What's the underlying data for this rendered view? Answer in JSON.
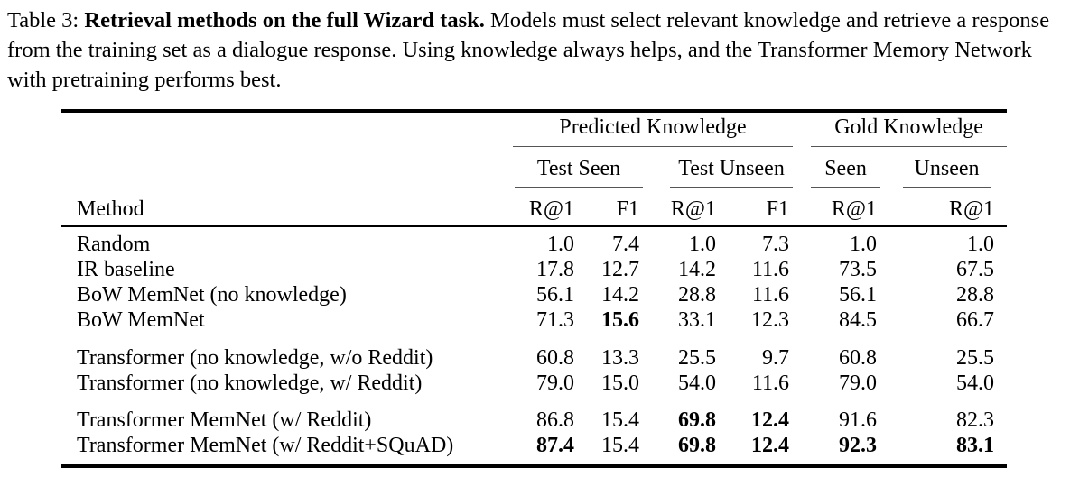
{
  "caption": {
    "prefix": "Table 3: ",
    "bold": "Retrieval methods on the full Wizard task.",
    "rest": " Models must select relevant knowledge and retrieve a response from the training set as a dialogue response. Using knowledge always helps, and the Transformer Memory Network with pretraining performs best."
  },
  "table": {
    "groups": [
      {
        "label": "Predicted Knowledge",
        "span": 4
      },
      {
        "label": "Gold Knowledge",
        "span": 2
      }
    ],
    "subgroups": [
      {
        "label": "Test Seen",
        "span": 2
      },
      {
        "label": "Test Unseen",
        "span": 2
      },
      {
        "label": "Seen",
        "span": 1
      },
      {
        "label": "Unseen",
        "span": 1
      }
    ],
    "method_header": "Method",
    "metric_headers": [
      "R@1",
      "F1",
      "R@1",
      "F1",
      "R@1",
      "R@1"
    ],
    "rows": [
      {
        "block": 1,
        "method": "Random",
        "cells": [
          {
            "v": "1.0"
          },
          {
            "v": "7.4"
          },
          {
            "v": "1.0"
          },
          {
            "v": "7.3"
          },
          {
            "v": "1.0"
          },
          {
            "v": "1.0"
          }
        ]
      },
      {
        "block": 1,
        "method": "IR baseline",
        "cells": [
          {
            "v": "17.8"
          },
          {
            "v": "12.7"
          },
          {
            "v": "14.2"
          },
          {
            "v": "11.6"
          },
          {
            "v": "73.5"
          },
          {
            "v": "67.5"
          }
        ]
      },
      {
        "block": 1,
        "method": "BoW MemNet (no knowledge)",
        "cells": [
          {
            "v": "56.1"
          },
          {
            "v": "14.2"
          },
          {
            "v": "28.8"
          },
          {
            "v": "11.6"
          },
          {
            "v": "56.1"
          },
          {
            "v": "28.8"
          }
        ]
      },
      {
        "block": 1,
        "method": "BoW MemNet",
        "cells": [
          {
            "v": "71.3"
          },
          {
            "v": "15.6",
            "b": true
          },
          {
            "v": "33.1"
          },
          {
            "v": "12.3"
          },
          {
            "v": "84.5"
          },
          {
            "v": "66.7"
          }
        ]
      },
      {
        "block": 2,
        "method": "Transformer (no knowledge, w/o Reddit)",
        "cells": [
          {
            "v": "60.8"
          },
          {
            "v": "13.3"
          },
          {
            "v": "25.5"
          },
          {
            "v": "9.7"
          },
          {
            "v": "60.8"
          },
          {
            "v": "25.5"
          }
        ]
      },
      {
        "block": 2,
        "method": "Transformer (no knowledge, w/ Reddit)",
        "cells": [
          {
            "v": "79.0"
          },
          {
            "v": "15.0"
          },
          {
            "v": "54.0"
          },
          {
            "v": "11.6"
          },
          {
            "v": "79.0"
          },
          {
            "v": "54.0"
          }
        ]
      },
      {
        "block": 3,
        "method": "Transformer MemNet (w/ Reddit)",
        "cells": [
          {
            "v": "86.8"
          },
          {
            "v": "15.4"
          },
          {
            "v": "69.8",
            "b": true
          },
          {
            "v": "12.4",
            "b": true
          },
          {
            "v": "91.6"
          },
          {
            "v": "82.3"
          }
        ]
      },
      {
        "block": 3,
        "method": "Transformer MemNet (w/ Reddit+SQuAD)",
        "cells": [
          {
            "v": "87.4",
            "b": true
          },
          {
            "v": "15.4"
          },
          {
            "v": "69.8",
            "b": true
          },
          {
            "v": "12.4",
            "b": true
          },
          {
            "v": "92.3",
            "b": true
          },
          {
            "v": "83.1",
            "b": true
          }
        ]
      }
    ]
  }
}
